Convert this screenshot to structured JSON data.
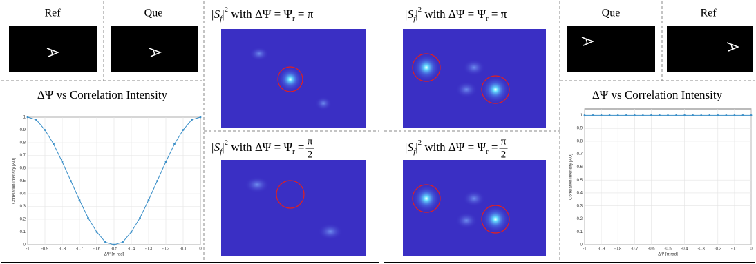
{
  "left": {
    "ref": "Ref",
    "que": "Que",
    "captions": [
      {
        "abs": "|S",
        "sub": "f",
        "close": "|",
        "sup": "2",
        "mid": " with ΔΨ = Ψ",
        "sub2": "r",
        "eq": " = ",
        "rhs": "π"
      },
      {
        "abs": "|S",
        "sub": "f",
        "close": "|",
        "sup": "2",
        "mid": " with ΔΨ = Ψ",
        "sub2": "r",
        "eq": " = ",
        "num": "π",
        "den": "2"
      }
    ]
  },
  "right": {
    "ref": "Ref",
    "que": "Que",
    "captions": [
      {
        "abs": "|S",
        "sub": "f",
        "close": "|",
        "sup": "2",
        "mid": " with ΔΨ = Ψ",
        "sub2": "r",
        "eq": " = ",
        "rhs": "π"
      },
      {
        "abs": "|S",
        "sub": "f",
        "close": "|",
        "sup": "2",
        "mid": " with ΔΨ = Ψ",
        "sub2": "r",
        "eq": " = ",
        "num": "π",
        "den": "2"
      }
    ]
  },
  "chart_data": [
    {
      "type": "line",
      "title": "ΔΨ vs Correlation Intensity",
      "xlabel": "ΔΨ [π rad]",
      "ylabel": "Correlation Intensity [AU]",
      "x": [
        -1,
        -0.95,
        -0.9,
        -0.85,
        -0.8,
        -0.75,
        -0.7,
        -0.65,
        -0.6,
        -0.55,
        -0.5,
        -0.45,
        -0.4,
        -0.35,
        -0.3,
        -0.25,
        -0.2,
        -0.15,
        -0.1,
        -0.05,
        0
      ],
      "values": [
        1,
        0.98,
        0.9,
        0.79,
        0.65,
        0.5,
        0.35,
        0.21,
        0.1,
        0.02,
        0,
        0.02,
        0.1,
        0.21,
        0.35,
        0.5,
        0.65,
        0.79,
        0.9,
        0.98,
        1
      ],
      "color": "#3a8fc8",
      "xlim": [
        -1,
        0
      ],
      "ylim": [
        0,
        1
      ],
      "xticks": [
        -1,
        -0.9,
        -0.8,
        -0.7,
        -0.6,
        -0.5,
        -0.4,
        -0.3,
        -0.2,
        -0.1,
        0
      ],
      "yticks": [
        0,
        0.1,
        0.2,
        0.3,
        0.4,
        0.5,
        0.6,
        0.7,
        0.8,
        0.9,
        1
      ],
      "grid": true
    },
    {
      "type": "line",
      "title": "ΔΨ vs Correlation Intensity",
      "xlabel": "ΔΨ [π rad]",
      "ylabel": "Correlation Intensity [AU]",
      "x": [
        -1,
        -0.95,
        -0.9,
        -0.85,
        -0.8,
        -0.75,
        -0.7,
        -0.65,
        -0.6,
        -0.55,
        -0.5,
        -0.45,
        -0.4,
        -0.35,
        -0.3,
        -0.25,
        -0.2,
        -0.15,
        -0.1,
        -0.05,
        0
      ],
      "values": [
        1,
        1,
        1,
        1,
        1,
        1,
        1,
        1,
        1,
        1,
        1,
        1,
        1,
        1,
        1,
        1,
        1,
        1,
        1,
        1,
        1
      ],
      "color": "#3a8fc8",
      "xlim": [
        -1,
        0
      ],
      "ylim": [
        0,
        1.05
      ],
      "xticks": [
        -1,
        -0.9,
        -0.8,
        -0.7,
        -0.6,
        -0.5,
        -0.4,
        -0.3,
        -0.2,
        -0.1,
        0
      ],
      "yticks": [
        0,
        0.1,
        0.2,
        0.3,
        0.4,
        0.5,
        0.6,
        0.7,
        0.8,
        0.9,
        1
      ],
      "grid": true
    }
  ]
}
